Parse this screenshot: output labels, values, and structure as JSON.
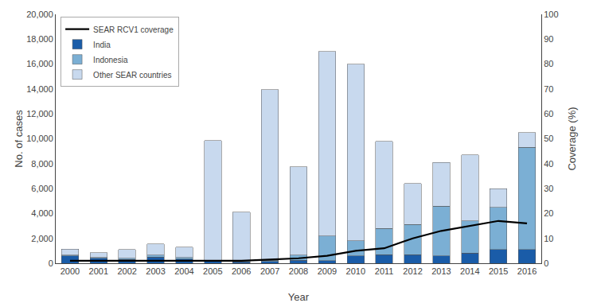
{
  "chart_data": {
    "type": "bar",
    "stacked": true,
    "xlabel": "Year",
    "ylabel": "No. of cases",
    "y2label": "Coverage (%)",
    "categories": [
      "2000",
      "2001",
      "2002",
      "2003",
      "2004",
      "2005",
      "2006",
      "2007",
      "2008",
      "2009",
      "2010",
      "2011",
      "2012",
      "2013",
      "2014",
      "2015",
      "2016"
    ],
    "series": [
      {
        "name": "India",
        "color": "#1a5ca8",
        "values": [
          600,
          400,
          300,
          500,
          350,
          150,
          100,
          150,
          250,
          200,
          600,
          700,
          700,
          600,
          800,
          1100,
          1100
        ]
      },
      {
        "name": "Indonesia",
        "color": "#7bafd4",
        "values": [
          50,
          50,
          100,
          150,
          100,
          100,
          100,
          100,
          400,
          2000,
          1200,
          2100,
          2400,
          4000,
          2600,
          3400,
          8200
        ]
      },
      {
        "name": "Other SEAR countries",
        "color": "#c8d9ee",
        "values": [
          500,
          400,
          700,
          900,
          850,
          9600,
          3900,
          13700,
          7100,
          14800,
          14200,
          7000,
          3300,
          3500,
          5300,
          1500,
          1200
        ]
      },
      {
        "name": "SEAR RCV1 coverage",
        "type": "line",
        "axis": "y2",
        "color": "#000000",
        "values": [
          1.0,
          1.0,
          1.0,
          1.0,
          1.0,
          1.0,
          1.0,
          1.5,
          2.0,
          3.0,
          5.0,
          6.0,
          10.0,
          13.0,
          15.0,
          17.0,
          16.0
        ]
      }
    ],
    "ylim": [
      0,
      20000
    ],
    "yticks": [
      0,
      {
        "value": 2000,
        "label": "2,000"
      },
      {
        "value": 4000,
        "label": "4,000"
      },
      {
        "value": 6000,
        "label": "6,000"
      },
      {
        "value": 8000,
        "label": "8,000"
      },
      {
        "value": 10000,
        "label": "10,000"
      },
      {
        "value": 12000,
        "label": "12,000"
      },
      {
        "value": 14000,
        "label": "14,000"
      },
      {
        "value": 16000,
        "label": "16,000"
      },
      {
        "value": 18000,
        "label": "18,000"
      },
      {
        "value": 20000,
        "label": "20,000"
      }
    ],
    "y2lim": [
      0,
      100
    ],
    "y2ticks": [
      0,
      10,
      20,
      30,
      40,
      50,
      60,
      70,
      80,
      90,
      100
    ],
    "legend": "upper left",
    "grid": false
  }
}
